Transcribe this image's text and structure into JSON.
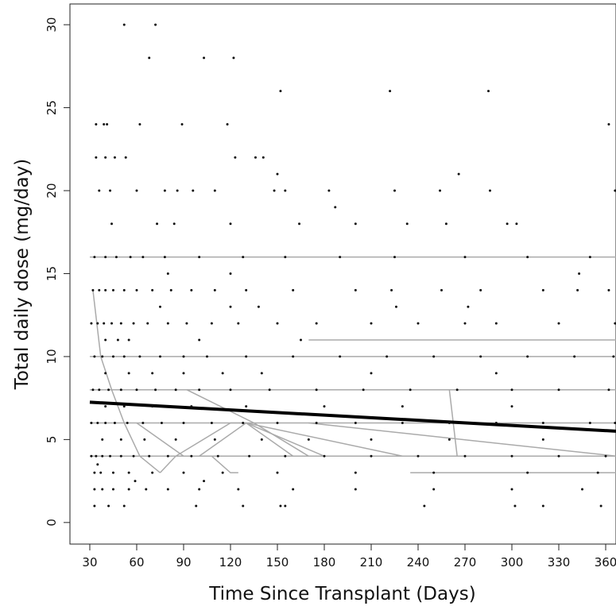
{
  "chart_data": {
    "type": "scatter",
    "xlabel": "Time Since Transplant (Days)",
    "ylabel": "Total daily dose (mg/day)",
    "xlim": [
      17.3,
      366.6
    ],
    "ylim": [
      -1.3,
      31.25
    ],
    "xticks": [
      30,
      60,
      90,
      120,
      150,
      180,
      210,
      240,
      270,
      300,
      330,
      360
    ],
    "yticks": [
      0,
      5,
      10,
      15,
      20,
      25,
      30
    ],
    "point_color": "#111111",
    "rows": [
      {
        "y": 30,
        "x": [
          52,
          72
        ]
      },
      {
        "y": 28,
        "x": [
          68,
          103,
          122
        ]
      },
      {
        "y": 26,
        "x": [
          152,
          222,
          285
        ]
      },
      {
        "y": 24,
        "x": [
          34,
          39,
          41,
          62,
          89,
          118,
          362
        ]
      },
      {
        "y": 22,
        "x": [
          34,
          40,
          46,
          53,
          123,
          136,
          141
        ]
      },
      {
        "y": 21,
        "x": [
          150,
          266
        ]
      },
      {
        "y": 20,
        "x": [
          36,
          43,
          60,
          78,
          86,
          96,
          110,
          148,
          155,
          183,
          225,
          254,
          286,
          366
        ]
      },
      {
        "y": 19,
        "x": [
          187
        ]
      },
      {
        "y": 18,
        "x": [
          44,
          73,
          84,
          120,
          164,
          200,
          233,
          258,
          297,
          303
        ]
      },
      {
        "y": 16,
        "x": [
          33,
          40,
          47,
          56,
          64,
          78,
          100,
          128,
          155,
          190,
          225,
          270,
          310,
          350
        ]
      },
      {
        "y": 15,
        "x": [
          80,
          120,
          343
        ]
      },
      {
        "y": 14,
        "x": [
          32,
          36,
          40,
          45,
          52,
          60,
          70,
          82,
          95,
          110,
          130,
          160,
          200,
          223,
          255,
          280,
          320,
          342,
          362
        ]
      },
      {
        "y": 13,
        "x": [
          75,
          120,
          138,
          226,
          272
        ]
      },
      {
        "y": 12,
        "x": [
          31,
          35,
          39,
          44,
          50,
          58,
          67,
          80,
          92,
          108,
          125,
          150,
          175,
          210,
          240,
          270,
          290,
          330,
          366
        ]
      },
      {
        "y": 11,
        "x": [
          40,
          48,
          55,
          100,
          165
        ]
      },
      {
        "y": 10,
        "x": [
          33,
          38,
          45,
          52,
          62,
          75,
          90,
          105,
          130,
          160,
          190,
          220,
          250,
          280,
          310,
          340,
          365
        ]
      },
      {
        "y": 9,
        "x": [
          40,
          55,
          70,
          90,
          115,
          140,
          210,
          290
        ]
      },
      {
        "y": 8,
        "x": [
          32,
          36,
          42,
          50,
          60,
          72,
          85,
          100,
          120,
          145,
          175,
          205,
          235,
          265,
          300,
          330,
          362
        ]
      },
      {
        "y": 7,
        "x": [
          40,
          52,
          70,
          95,
          130,
          180,
          230,
          300
        ]
      },
      {
        "y": 6,
        "x": [
          31,
          35,
          40,
          46,
          54,
          64,
          76,
          90,
          108,
          128,
          150,
          175,
          200,
          230,
          260,
          290,
          320,
          350,
          366
        ]
      },
      {
        "y": 5,
        "x": [
          38,
          50,
          65,
          85,
          110,
          140,
          170,
          210,
          260,
          320
        ]
      },
      {
        "y": 4,
        "x": [
          31,
          34,
          38,
          43,
          50,
          58,
          68,
          80,
          95,
          112,
          132,
          155,
          180,
          210,
          240,
          270,
          300,
          330,
          360
        ]
      },
      {
        "y": 3.5,
        "x": [
          35
        ]
      },
      {
        "y": 3,
        "x": [
          33,
          37,
          45,
          55,
          70,
          90,
          115,
          150,
          200,
          250,
          310,
          355
        ]
      },
      {
        "y": 2.5,
        "x": [
          59,
          103
        ]
      },
      {
        "y": 2,
        "x": [
          33,
          38,
          45,
          55,
          66,
          80,
          100,
          125,
          160,
          200,
          250,
          300,
          345
        ]
      },
      {
        "y": 1,
        "x": [
          33,
          42,
          52,
          98,
          128,
          152,
          155,
          244,
          302,
          320,
          357
        ]
      }
    ],
    "lines": [
      {
        "color": "#aaaaaa",
        "line_width": 1.5,
        "x": [
          30,
          367
        ],
        "values": [
          16,
          16
        ]
      },
      {
        "color": "#aaaaaa",
        "line_width": 1.5,
        "x": [
          170,
          367
        ],
        "values": [
          11,
          11
        ]
      },
      {
        "color": "#aaaaaa",
        "line_width": 1.5,
        "x": [
          30,
          367
        ],
        "values": [
          10,
          10
        ]
      },
      {
        "color": "#aaaaaa",
        "line_width": 1.5,
        "x": [
          30,
          367
        ],
        "values": [
          8,
          8
        ]
      },
      {
        "color": "#aaaaaa",
        "line_width": 1.5,
        "x": [
          30,
          367
        ],
        "values": [
          6,
          6
        ]
      },
      {
        "color": "#aaaaaa",
        "line_width": 1.5,
        "x": [
          30,
          367
        ],
        "values": [
          4,
          4
        ]
      },
      {
        "color": "#aaaaaa",
        "line_width": 1.5,
        "x": [
          235,
          367
        ],
        "values": [
          3,
          3
        ]
      },
      {
        "color": "#aaaaaa",
        "line_width": 1.5,
        "x": [
          32,
          37,
          44,
          52,
          62,
          75
        ],
        "values": [
          14,
          10,
          8,
          6,
          4,
          3
        ]
      },
      {
        "color": "#aaaaaa",
        "line_width": 1.5,
        "x": [
          92,
          135,
          170
        ],
        "values": [
          8,
          6,
          4
        ]
      },
      {
        "color": "#aaaaaa",
        "line_width": 1.5,
        "x": [
          100,
          130,
          160
        ],
        "values": [
          4,
          6,
          4
        ]
      },
      {
        "color": "#aaaaaa",
        "line_width": 1.5,
        "x": [
          75,
          85,
          120,
          130,
          180
        ],
        "values": [
          3,
          4,
          6,
          6,
          4
        ]
      },
      {
        "color": "#aaaaaa",
        "line_width": 1.5,
        "x": [
          108,
          120,
          125
        ],
        "values": [
          4,
          3,
          3
        ]
      },
      {
        "color": "#aaaaaa",
        "line_width": 1.5,
        "x": [
          260,
          265
        ],
        "values": [
          8,
          4
        ]
      },
      {
        "color": "#aaaaaa",
        "line_width": 1.5,
        "x": [
          130,
          230
        ],
        "values": [
          6,
          4
        ]
      },
      {
        "color": "#aaaaaa",
        "line_width": 1.5,
        "x": [
          170,
          367
        ],
        "values": [
          6,
          4
        ]
      },
      {
        "color": "#aaaaaa",
        "line_width": 1.5,
        "x": [
          60,
          90,
          105
        ],
        "values": [
          6,
          4,
          4
        ]
      },
      {
        "color": "#000000",
        "line_width": 4,
        "x": [
          30,
          367
        ],
        "values": [
          7.25,
          5.5
        ]
      }
    ]
  }
}
